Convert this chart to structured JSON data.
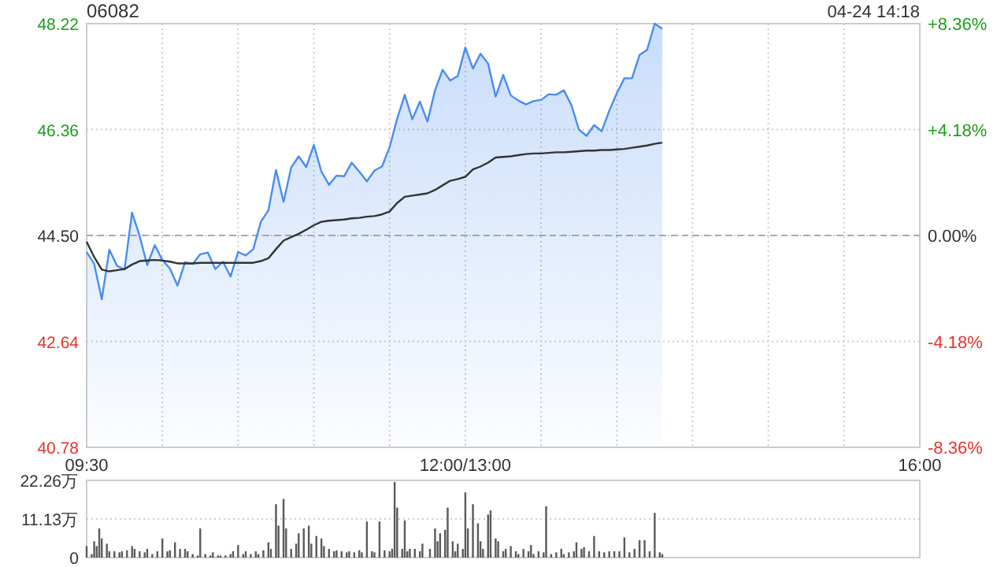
{
  "chart_data": [
    {
      "type": "area",
      "title": "06082",
      "annotations": [
        "04-24 14:18"
      ],
      "categories": [
        "09:30",
        null,
        null,
        null,
        null,
        null,
        null,
        null,
        null,
        null,
        null,
        null,
        null,
        null,
        null,
        null,
        null,
        null,
        null,
        null,
        null,
        null,
        null,
        null,
        null,
        null,
        null,
        null,
        null,
        null,
        null,
        null,
        null,
        null,
        null,
        null,
        null,
        null,
        null,
        null,
        null,
        null,
        null,
        null,
        null,
        null,
        null,
        null,
        null,
        null,
        "12:00/13:00",
        null,
        null,
        null,
        null,
        null,
        null,
        null,
        null,
        null,
        null,
        null,
        null,
        null,
        null,
        null,
        null,
        null,
        null,
        null,
        null,
        null,
        null,
        null,
        null,
        null,
        null,
        null,
        null,
        null,
        null,
        null,
        null,
        null,
        null,
        null,
        null,
        null,
        null,
        null,
        null,
        null,
        null,
        null,
        null,
        null,
        null,
        null,
        null,
        null,
        null,
        null,
        null,
        null,
        null,
        null,
        null,
        null,
        null,
        null,
        "16:00"
      ],
      "ylim": [
        40.78,
        48.22
      ],
      "yticks": [
        40.78,
        42.64,
        {
          "value": 44.5,
          "label": "44.50"
        },
        46.36,
        48.22
      ],
      "y2lim": [
        -8.36,
        8.36
      ],
      "y2ticks": [
        {
          "value": -8.36,
          "label": "-8.36%"
        },
        {
          "value": -4.18,
          "label": "-4.18%"
        },
        {
          "value": 0,
          "label": "0.00%"
        },
        {
          "value": 4.18,
          "label": "+4.18%"
        },
        {
          "value": 8.36,
          "label": "+8.36%"
        }
      ],
      "grid": true,
      "ref_lines": [
        {
          "axis": "y",
          "value": 44.5,
          "label": null,
          "line_style": "dashed"
        }
      ],
      "series": [
        {
          "color": "#4a8cf0",
          "values": [
            44.21,
            44.0,
            43.38,
            44.25,
            43.97,
            43.9,
            44.9,
            44.49,
            43.98,
            44.33,
            44.07,
            43.92,
            43.62,
            44.03,
            44.0,
            44.17,
            44.2,
            43.91,
            44.04,
            43.78,
            44.21,
            44.15,
            44.26,
            44.74,
            44.94,
            45.65,
            45.09,
            45.69,
            45.89,
            45.7,
            46.09,
            45.62,
            45.39,
            45.55,
            45.54,
            45.78,
            45.62,
            45.45,
            45.64,
            45.71,
            46.05,
            46.55,
            46.97,
            46.54,
            46.85,
            46.5,
            47.05,
            47.41,
            47.22,
            47.3,
            47.8,
            47.43,
            47.69,
            47.52,
            46.94,
            47.32,
            46.96,
            46.87,
            46.8,
            46.86,
            46.88,
            46.98,
            46.97,
            47.05,
            46.79,
            46.36,
            46.25,
            46.44,
            46.33,
            46.69,
            47.0,
            47.26,
            47.26,
            47.67,
            47.76,
            48.22,
            48.13,
            null,
            null,
            null,
            null,
            null,
            null,
            null,
            null,
            null,
            null,
            null,
            null,
            null,
            null,
            null,
            null,
            null,
            null,
            null,
            null,
            null,
            null,
            null,
            null,
            null,
            null,
            null,
            null,
            null,
            null,
            null,
            null,
            null,
            null
          ]
        },
        {
          "type": "line",
          "color": "#333333",
          "values": [
            44.39,
            44.12,
            43.9,
            43.87,
            43.89,
            43.91,
            43.99,
            44.05,
            44.06,
            44.07,
            44.06,
            44.04,
            44.01,
            44.01,
            44.01,
            44.02,
            44.02,
            44.02,
            44.02,
            44.02,
            44.02,
            44.02,
            44.02,
            44.05,
            44.1,
            44.26,
            44.41,
            44.47,
            44.53,
            44.6,
            44.68,
            44.74,
            44.76,
            44.77,
            44.78,
            44.8,
            44.81,
            44.83,
            44.84,
            44.87,
            44.92,
            45.07,
            45.18,
            45.2,
            45.22,
            45.24,
            45.3,
            45.38,
            45.46,
            45.49,
            45.53,
            45.66,
            45.71,
            45.78,
            45.87,
            45.88,
            45.89,
            45.91,
            45.93,
            45.94,
            45.94,
            45.95,
            45.96,
            45.96,
            45.97,
            45.98,
            45.99,
            45.99,
            46.0,
            46.0,
            46.01,
            46.02,
            46.04,
            46.06,
            46.08,
            46.11,
            46.13,
            null,
            null,
            null,
            null,
            null,
            null,
            null,
            null,
            null,
            null,
            null,
            null,
            null,
            null,
            null,
            null,
            null,
            null,
            null,
            null,
            null,
            null,
            null,
            null,
            null,
            null,
            null,
            null,
            null,
            null,
            null,
            null,
            null,
            null
          ]
        }
      ]
    },
    {
      "type": "bar",
      "categories": [
        null,
        null,
        null,
        null,
        null,
        null,
        null,
        null,
        null,
        null,
        null,
        null,
        null,
        null,
        null,
        null,
        null,
        null,
        null,
        null,
        null,
        null,
        null,
        null,
        null,
        null,
        null,
        null,
        null,
        null,
        null,
        null,
        null,
        null,
        null,
        null,
        null,
        null,
        null,
        null,
        null,
        null,
        null,
        null,
        null,
        null,
        null,
        null,
        null,
        null,
        null,
        null,
        null,
        null,
        null,
        null,
        null,
        null,
        null,
        null,
        null,
        null,
        null,
        null,
        null,
        null,
        null,
        null,
        null,
        null,
        null,
        null,
        null,
        null,
        null,
        null,
        null,
        null,
        null,
        null,
        null,
        null,
        null,
        null,
        null,
        null,
        null,
        null,
        null,
        null,
        null,
        null,
        null,
        null,
        null,
        null,
        null,
        null,
        null,
        null,
        null,
        null,
        null,
        null,
        null,
        null,
        null,
        null,
        null,
        null,
        null,
        null,
        null,
        null,
        null,
        null,
        null,
        null,
        null,
        null,
        null,
        null,
        null,
        null,
        null,
        null,
        null,
        null,
        null,
        null,
        null,
        null,
        null,
        null,
        null,
        null,
        null,
        null,
        null,
        null,
        null,
        null,
        null,
        null,
        null,
        null,
        null,
        null,
        null,
        null,
        null,
        null,
        null,
        null,
        null,
        null,
        null,
        null,
        null,
        null,
        null,
        null,
        null,
        null,
        null,
        null,
        null,
        null,
        null,
        null,
        null,
        null,
        null,
        null,
        null,
        null,
        null,
        null,
        null,
        null,
        null,
        null,
        null,
        null,
        null,
        null,
        null,
        null,
        null,
        null,
        null,
        null,
        null,
        null,
        null,
        null,
        null,
        null,
        null,
        null,
        null,
        null,
        null,
        null,
        null,
        null,
        null,
        null,
        null,
        null,
        null,
        null,
        null,
        null,
        null,
        null,
        null,
        null,
        null,
        null,
        null,
        null,
        null,
        null,
        null,
        null,
        null,
        null,
        null,
        null,
        null,
        null,
        null,
        null,
        null,
        null,
        null,
        null,
        null,
        null,
        null,
        null,
        null,
        null,
        null,
        null,
        null,
        null,
        null,
        null,
        null,
        null,
        null,
        null,
        null,
        null,
        null,
        null,
        null,
        null,
        null,
        null,
        null,
        null,
        null,
        null,
        null,
        null,
        null,
        null,
        null,
        null,
        null,
        null,
        null,
        null,
        null,
        null,
        null,
        null,
        null,
        null,
        null,
        null,
        null,
        null,
        null,
        null,
        null,
        null,
        null,
        null,
        null,
        null,
        null,
        null,
        null,
        null,
        null,
        null,
        null,
        null,
        null,
        null,
        null,
        null,
        null,
        null,
        null,
        null,
        null,
        null,
        null,
        null,
        null,
        null,
        null,
        null,
        null,
        null,
        null,
        null,
        null,
        null,
        null,
        null,
        null,
        null,
        null,
        null,
        null
      ],
      "ylim": [
        0,
        22.26
      ],
      "yticks": [
        {
          "value": 0,
          "label": "0"
        },
        {
          "value": 11.13,
          "label": "11.13万"
        },
        {
          "value": 22.26,
          "label": "22.26万"
        }
      ],
      "grid": "y",
      "series": [
        {
          "color": "#5a5a5a",
          "values": [
            3.3,
            null,
            1,
            4.7,
            3.3,
            8.4,
            5.5,
            null,
            4,
            1.8,
            null,
            1.8,
            null,
            1.5,
            1.8,
            null,
            2.1,
            null,
            3.3,
            2.5,
            null,
            1.8,
            null,
            1.5,
            2.5,
            null,
            1,
            null,
            1.8,
            null,
            5.5,
            null,
            1.8,
            2.1,
            null,
            4.4,
            null,
            2.5,
            null,
            2.5,
            1.8,
            null,
            1,
            null,
            0.6,
            8.4,
            null,
            1,
            null,
            0.6,
            1.5,
            null,
            0.6,
            0.6,
            null,
            0.6,
            null,
            1,
            1.8,
            null,
            3.6,
            null,
            1,
            1.8,
            null,
            1,
            null,
            1.8,
            1,
            null,
            2.1,
            null,
            4.4,
            2.5,
            null,
            15.4,
            9.2,
            null,
            16.9,
            8.4,
            null,
            2.5,
            null,
            4,
            7,
            null,
            8.4,
            null,
            9.2,
            4,
            null,
            6.2,
            null,
            5.5,
            3.3,
            null,
            2.5,
            null,
            1.8,
            2.1,
            null,
            1.8,
            null,
            1.5,
            1.8,
            null,
            1.5,
            null,
            2.1,
            1.5,
            null,
            10.4,
            null,
            1.8,
            1.5,
            null,
            10.4,
            null,
            2.1,
            null,
            1.8,
            2.5,
            21.8,
            14.4,
            null,
            2.5,
            10.7,
            1.8,
            2.5,
            null,
            2.5,
            null,
            1.8,
            4,
            null,
            null,
            2.5,
            null,
            8.4,
            4.7,
            7,
            null,
            8,
            14.4,
            null,
            4.7,
            1.8,
            4,
            null,
            2.5,
            18.8,
            8.4,
            null,
            15.4,
            null,
            9.9,
            4.7,
            2.5,
            null,
            12.4,
            13.6,
            null,
            5.5,
            4.7,
            null,
            1.8,
            2.5,
            null,
            3.3,
            null,
            1.8,
            1,
            null,
            2.5,
            null,
            1.8,
            3.6,
            1,
            null,
            1.8,
            null,
            1.5,
            14.8,
            null,
            1,
            null,
            1.5,
            null,
            2.5,
            1,
            null,
            1.5,
            null,
            1.8,
            4.4,
            null,
            2.5,
            3,
            null,
            1.8,
            null,
            6.2,
            null,
            1.8,
            null,
            1.5,
            null,
            1.8,
            null,
            1.8,
            null,
            1.8,
            null,
            5.8,
            null,
            1.5,
            null,
            2.5,
            null,
            5,
            null,
            5,
            null,
            1.8,
            null,
            12.9,
            null,
            1.5,
            1,
            null,
            null,
            null,
            null,
            null,
            null,
            null,
            null,
            null,
            null,
            null,
            null,
            null,
            null,
            null,
            null,
            null,
            null,
            null,
            null,
            null,
            null,
            null,
            null,
            null,
            null,
            null,
            null,
            null,
            null,
            null,
            null,
            null,
            null,
            null,
            null,
            null,
            null,
            null,
            null,
            null,
            null,
            null,
            null,
            null,
            null,
            null,
            null,
            null,
            null,
            null,
            null,
            null,
            null,
            null,
            null,
            null,
            null,
            null,
            null,
            null,
            null,
            null,
            null,
            null,
            null,
            null,
            null,
            null,
            null,
            null,
            null,
            null,
            null,
            null,
            null,
            null,
            null,
            null,
            null,
            null,
            null,
            null,
            null,
            null,
            null,
            null,
            null,
            null,
            null,
            null,
            null,
            null,
            null,
            null,
            null,
            null,
            null,
            null,
            null,
            null,
            null
          ]
        }
      ]
    }
  ]
}
